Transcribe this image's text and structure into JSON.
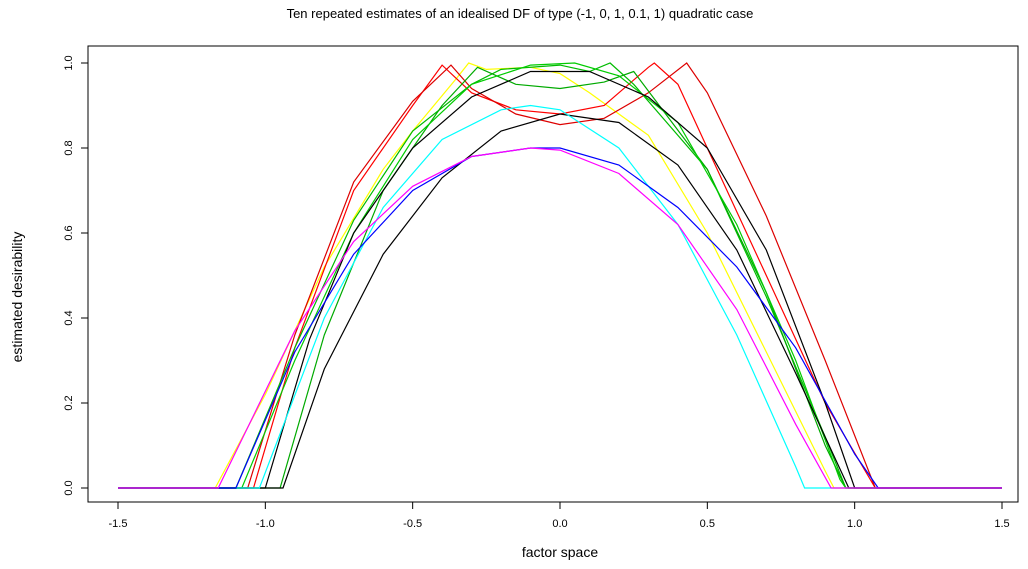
{
  "chart_data": {
    "type": "line",
    "title": "Ten repeated estimates of an idealised DF of type (-1, 0, 1, 0.1, 1) quadratic case",
    "xlabel": "factor space",
    "ylabel": "estimated desirability",
    "xlim": [
      -1.5,
      1.5
    ],
    "ylim": [
      0,
      1
    ],
    "xticks": [
      -1.5,
      -1.0,
      -0.5,
      0.0,
      0.5,
      1.0,
      1.5
    ],
    "xtick_labels": [
      "-1.5",
      "-1.0",
      "-0.5",
      "0.0",
      "0.5",
      "1.0",
      "1.5"
    ],
    "yticks": [
      0.0,
      0.2,
      0.4,
      0.6,
      0.8,
      1.0
    ],
    "ytick_labels": [
      "0.0",
      "0.2",
      "0.4",
      "0.6",
      "0.8",
      "1.0"
    ],
    "grid": false,
    "legend": "none",
    "series": [
      {
        "color": "#FFFF00",
        "points": [
          [
            -1.5,
            0
          ],
          [
            -1.17,
            0
          ],
          [
            -1.0,
            0.22
          ],
          [
            -0.8,
            0.52
          ],
          [
            -0.6,
            0.75
          ],
          [
            -0.5,
            0.84
          ],
          [
            -0.35,
            0.965
          ],
          [
            -0.31,
            1.0
          ],
          [
            -0.25,
            0.985
          ],
          [
            -0.1,
            0.99
          ],
          [
            0.0,
            0.975
          ],
          [
            0.1,
            0.93
          ],
          [
            0.3,
            0.83
          ],
          [
            0.5,
            0.6
          ],
          [
            0.7,
            0.32
          ],
          [
            0.9,
            0.04
          ],
          [
            0.93,
            0
          ],
          [
            1.5,
            0
          ]
        ]
      },
      {
        "color": "#FF0000",
        "points": [
          [
            -1.5,
            0
          ],
          [
            -1.04,
            0
          ],
          [
            -0.9,
            0.33
          ],
          [
            -0.7,
            0.7
          ],
          [
            -0.5,
            0.9
          ],
          [
            -0.4,
            0.995
          ],
          [
            -0.3,
            0.93
          ],
          [
            -0.15,
            0.89
          ],
          [
            0.0,
            0.88
          ],
          [
            0.15,
            0.9
          ],
          [
            0.3,
            0.99
          ],
          [
            0.32,
            1.0
          ],
          [
            0.4,
            0.95
          ],
          [
            0.5,
            0.8
          ],
          [
            0.7,
            0.5
          ],
          [
            0.9,
            0.2
          ],
          [
            1.07,
            0
          ],
          [
            1.5,
            0
          ]
        ]
      },
      {
        "color": "#DD0000",
        "points": [
          [
            -1.5,
            0
          ],
          [
            -1.06,
            0
          ],
          [
            -0.9,
            0.36
          ],
          [
            -0.7,
            0.72
          ],
          [
            -0.5,
            0.91
          ],
          [
            -0.37,
            0.995
          ],
          [
            -0.3,
            0.94
          ],
          [
            -0.15,
            0.88
          ],
          [
            0.0,
            0.855
          ],
          [
            0.15,
            0.87
          ],
          [
            0.3,
            0.93
          ],
          [
            0.43,
            1.0
          ],
          [
            0.5,
            0.93
          ],
          [
            0.7,
            0.64
          ],
          [
            0.9,
            0.3
          ],
          [
            1.07,
            0
          ],
          [
            1.5,
            0
          ]
        ]
      },
      {
        "color": "#00BB00",
        "points": [
          [
            -1.5,
            0
          ],
          [
            -1.1,
            0
          ],
          [
            -0.9,
            0.33
          ],
          [
            -0.7,
            0.63
          ],
          [
            -0.5,
            0.84
          ],
          [
            -0.3,
            0.95
          ],
          [
            -0.2,
            0.985
          ],
          [
            0.0,
            0.995
          ],
          [
            0.1,
            0.98
          ],
          [
            0.17,
            1.0
          ],
          [
            0.25,
            0.95
          ],
          [
            0.5,
            0.75
          ],
          [
            0.7,
            0.45
          ],
          [
            0.9,
            0.12
          ],
          [
            0.97,
            0
          ],
          [
            1.5,
            0
          ]
        ]
      },
      {
        "color": "#00AA00",
        "points": [
          [
            -1.5,
            0
          ],
          [
            -0.95,
            0
          ],
          [
            -0.8,
            0.36
          ],
          [
            -0.6,
            0.7
          ],
          [
            -0.4,
            0.9
          ],
          [
            -0.28,
            0.99
          ],
          [
            -0.15,
            0.95
          ],
          [
            0.0,
            0.94
          ],
          [
            0.15,
            0.955
          ],
          [
            0.25,
            0.98
          ],
          [
            0.5,
            0.75
          ],
          [
            0.7,
            0.46
          ],
          [
            0.9,
            0.1
          ],
          [
            0.97,
            0
          ],
          [
            1.5,
            0
          ]
        ]
      },
      {
        "color": "#00CC00",
        "points": [
          [
            -1.5,
            0
          ],
          [
            -1.08,
            0
          ],
          [
            -0.9,
            0.3
          ],
          [
            -0.7,
            0.6
          ],
          [
            -0.5,
            0.82
          ],
          [
            -0.3,
            0.95
          ],
          [
            -0.1,
            0.995
          ],
          [
            0.05,
            1.0
          ],
          [
            0.2,
            0.97
          ],
          [
            0.4,
            0.86
          ],
          [
            0.6,
            0.62
          ],
          [
            0.8,
            0.3
          ],
          [
            0.95,
            0.02
          ],
          [
            0.97,
            0
          ],
          [
            1.5,
            0
          ]
        ]
      },
      {
        "color": "#000000",
        "points": [
          [
            -1.5,
            0
          ],
          [
            -1.0,
            0
          ],
          [
            -0.85,
            0.35
          ],
          [
            -0.7,
            0.6
          ],
          [
            -0.5,
            0.8
          ],
          [
            -0.3,
            0.92
          ],
          [
            -0.1,
            0.98
          ],
          [
            0.1,
            0.98
          ],
          [
            0.3,
            0.92
          ],
          [
            0.5,
            0.8
          ],
          [
            0.7,
            0.56
          ],
          [
            0.9,
            0.2
          ],
          [
            1.0,
            0
          ],
          [
            1.5,
            0
          ]
        ]
      },
      {
        "color": "#000000",
        "points": [
          [
            -1.5,
            0
          ],
          [
            -0.94,
            0
          ],
          [
            -0.8,
            0.28
          ],
          [
            -0.6,
            0.55
          ],
          [
            -0.4,
            0.73
          ],
          [
            -0.2,
            0.84
          ],
          [
            0.0,
            0.88
          ],
          [
            0.2,
            0.86
          ],
          [
            0.4,
            0.76
          ],
          [
            0.6,
            0.56
          ],
          [
            0.8,
            0.27
          ],
          [
            0.98,
            0
          ],
          [
            1.5,
            0
          ]
        ]
      },
      {
        "color": "#00FFFF",
        "points": [
          [
            -1.5,
            0
          ],
          [
            -1.02,
            0
          ],
          [
            -0.8,
            0.4
          ],
          [
            -0.6,
            0.66
          ],
          [
            -0.4,
            0.82
          ],
          [
            -0.2,
            0.89
          ],
          [
            -0.1,
            0.9
          ],
          [
            0.0,
            0.89
          ],
          [
            0.2,
            0.8
          ],
          [
            0.4,
            0.62
          ],
          [
            0.6,
            0.36
          ],
          [
            0.8,
            0.05
          ],
          [
            0.83,
            0
          ],
          [
            1.5,
            0
          ]
        ]
      },
      {
        "color": "#0000FF",
        "points": [
          [
            -1.5,
            0
          ],
          [
            -1.1,
            0
          ],
          [
            -0.9,
            0.32
          ],
          [
            -0.7,
            0.55
          ],
          [
            -0.5,
            0.7
          ],
          [
            -0.3,
            0.78
          ],
          [
            -0.1,
            0.8
          ],
          [
            0.0,
            0.8
          ],
          [
            0.2,
            0.76
          ],
          [
            0.4,
            0.66
          ],
          [
            0.6,
            0.52
          ],
          [
            0.8,
            0.33
          ],
          [
            1.0,
            0.08
          ],
          [
            1.08,
            0
          ],
          [
            1.5,
            0
          ]
        ]
      },
      {
        "color": "#FF00FF",
        "points": [
          [
            -1.5,
            0
          ],
          [
            -1.16,
            0
          ],
          [
            -0.9,
            0.37
          ],
          [
            -0.7,
            0.58
          ],
          [
            -0.5,
            0.71
          ],
          [
            -0.3,
            0.78
          ],
          [
            -0.1,
            0.8
          ],
          [
            0.0,
            0.795
          ],
          [
            0.2,
            0.74
          ],
          [
            0.4,
            0.62
          ],
          [
            0.6,
            0.42
          ],
          [
            0.8,
            0.15
          ],
          [
            0.92,
            0
          ],
          [
            1.5,
            0
          ]
        ]
      }
    ]
  }
}
